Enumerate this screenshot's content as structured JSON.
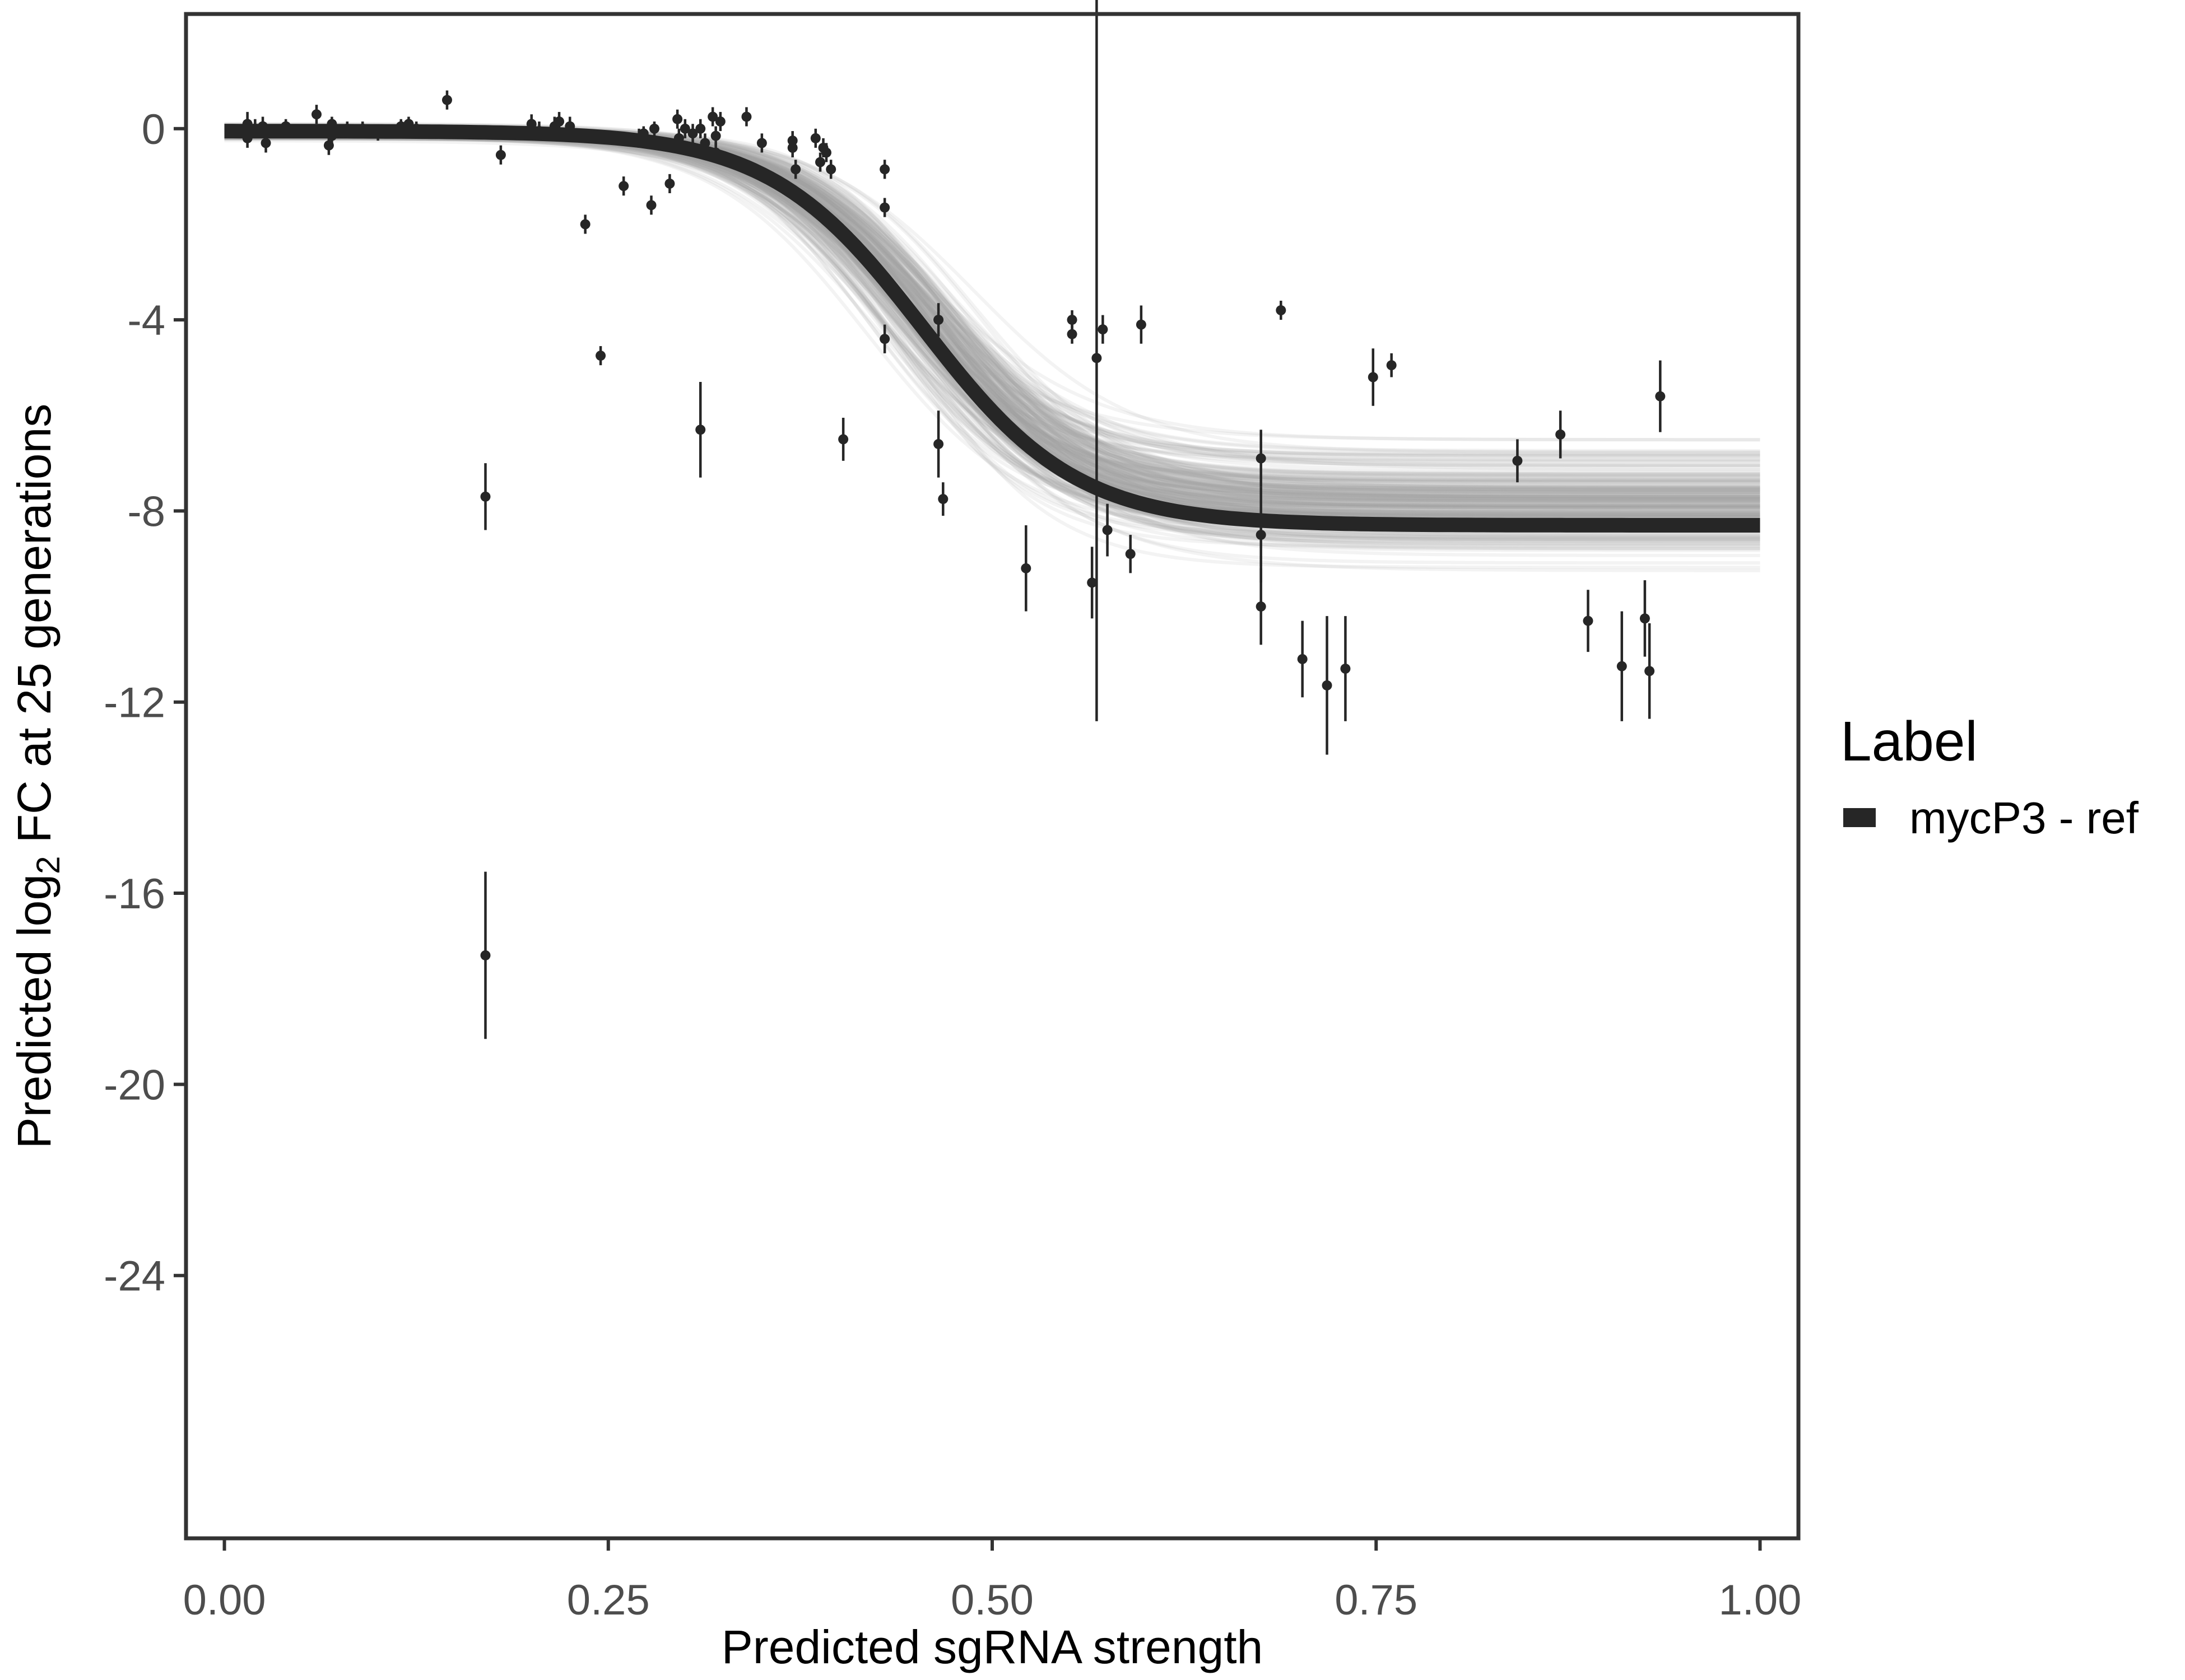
{
  "chart_data": {
    "type": "scatter",
    "xlabel": "Predicted sgRNA strength",
    "ylabel_parts": [
      "Predicted  log",
      "2",
      " FC at 25 generations"
    ],
    "xlim": [
      -0.025,
      1.025
    ],
    "ylim": [
      -29.5,
      2.4
    ],
    "x_ticks": [
      0.0,
      0.25,
      0.5,
      0.75,
      1.0
    ],
    "x_tick_labels": [
      "0.00",
      "0.25",
      "0.50",
      "0.75",
      "1.00"
    ],
    "y_ticks": [
      0,
      -4,
      -8,
      -12,
      -16,
      -20,
      -24
    ],
    "y_tick_labels": [
      "0",
      "-4",
      "-8",
      "-12",
      "-16",
      "-20",
      "-24"
    ],
    "grid": false,
    "legend": {
      "title": "Label",
      "position": "right",
      "entries": [
        {
          "label": "mycP3 - ref",
          "color": "#262626"
        }
      ]
    },
    "fit_curve": {
      "name": "mycP3 - ref",
      "color": "#262626",
      "model": "logistic",
      "top": -0.05,
      "bottom": -8.3,
      "midpoint": 0.455,
      "slope": 20
    },
    "posterior_band": {
      "color": "#a6a6a6",
      "top_range": [
        -0.35,
        0.2
      ],
      "bottom_range": [
        -10.4,
        -5.9
      ],
      "midpoint_range": [
        0.39,
        0.52
      ],
      "slope_range": [
        14,
        26
      ],
      "draws": 260
    },
    "points": [
      {
        "x": 0.015,
        "y": 0.1,
        "err": 0.25
      },
      {
        "x": 0.015,
        "y": -0.2,
        "err": 0.2
      },
      {
        "x": 0.02,
        "y": 0.0,
        "err": 0.2
      },
      {
        "x": 0.025,
        "y": 0.05,
        "err": 0.2
      },
      {
        "x": 0.027,
        "y": -0.3,
        "err": 0.2
      },
      {
        "x": 0.04,
        "y": 0.05,
        "err": 0.15
      },
      {
        "x": 0.06,
        "y": 0.3,
        "err": 0.2
      },
      {
        "x": 0.068,
        "y": -0.35,
        "err": 0.2
      },
      {
        "x": 0.07,
        "y": -0.15,
        "err": 0.2
      },
      {
        "x": 0.07,
        "y": 0.1,
        "err": 0.15
      },
      {
        "x": 0.08,
        "y": 0.0,
        "err": 0.15
      },
      {
        "x": 0.09,
        "y": 0.0,
        "err": 0.15
      },
      {
        "x": 0.1,
        "y": -0.1,
        "err": 0.15
      },
      {
        "x": 0.115,
        "y": 0.05,
        "err": 0.15
      },
      {
        "x": 0.12,
        "y": 0.1,
        "err": 0.15
      },
      {
        "x": 0.125,
        "y": 0.0,
        "err": 0.15
      },
      {
        "x": 0.145,
        "y": 0.6,
        "err": 0.2
      },
      {
        "x": 0.17,
        "y": -7.7,
        "err": 0.7
      },
      {
        "x": 0.17,
        "y": -17.3,
        "err": 1.75
      },
      {
        "x": 0.18,
        "y": -0.55,
        "err": 0.2
      },
      {
        "x": 0.2,
        "y": 0.1,
        "err": 0.2
      },
      {
        "x": 0.205,
        "y": -0.05,
        "err": 0.2
      },
      {
        "x": 0.215,
        "y": 0.05,
        "err": 0.2
      },
      {
        "x": 0.218,
        "y": 0.15,
        "err": 0.2
      },
      {
        "x": 0.225,
        "y": 0.05,
        "err": 0.2
      },
      {
        "x": 0.235,
        "y": -2.0,
        "err": 0.2
      },
      {
        "x": 0.245,
        "y": -4.75,
        "err": 0.2
      },
      {
        "x": 0.26,
        "y": -1.2,
        "err": 0.2
      },
      {
        "x": 0.27,
        "y": -0.2,
        "err": 0.2
      },
      {
        "x": 0.273,
        "y": -0.1,
        "err": 0.15
      },
      {
        "x": 0.278,
        "y": -1.6,
        "err": 0.2
      },
      {
        "x": 0.28,
        "y": 0.0,
        "err": 0.15
      },
      {
        "x": 0.29,
        "y": -1.15,
        "err": 0.2
      },
      {
        "x": 0.295,
        "y": 0.2,
        "err": 0.2
      },
      {
        "x": 0.296,
        "y": -0.2,
        "err": 0.2
      },
      {
        "x": 0.3,
        "y": 0.0,
        "err": 0.2
      },
      {
        "x": 0.305,
        "y": -0.1,
        "err": 0.2
      },
      {
        "x": 0.31,
        "y": 0.0,
        "err": 0.2
      },
      {
        "x": 0.31,
        "y": -6.3,
        "err": 1.0
      },
      {
        "x": 0.313,
        "y": -0.3,
        "err": 0.2
      },
      {
        "x": 0.318,
        "y": 0.25,
        "err": 0.2
      },
      {
        "x": 0.32,
        "y": -0.5,
        "err": 0.2
      },
      {
        "x": 0.32,
        "y": -0.15,
        "err": 0.2
      },
      {
        "x": 0.323,
        "y": 0.15,
        "err": 0.2
      },
      {
        "x": 0.34,
        "y": 0.25,
        "err": 0.2
      },
      {
        "x": 0.35,
        "y": -0.3,
        "err": 0.2
      },
      {
        "x": 0.37,
        "y": -0.25,
        "err": 0.2
      },
      {
        "x": 0.37,
        "y": -0.4,
        "err": 0.2
      },
      {
        "x": 0.372,
        "y": -0.85,
        "err": 0.2
      },
      {
        "x": 0.385,
        "y": -0.2,
        "err": 0.2
      },
      {
        "x": 0.388,
        "y": -0.7,
        "err": 0.2
      },
      {
        "x": 0.39,
        "y": -0.4,
        "err": 0.2
      },
      {
        "x": 0.392,
        "y": -0.5,
        "err": 0.2
      },
      {
        "x": 0.395,
        "y": -0.85,
        "err": 0.2
      },
      {
        "x": 0.403,
        "y": -6.5,
        "err": 0.45
      },
      {
        "x": 0.43,
        "y": -0.85,
        "err": 0.2
      },
      {
        "x": 0.43,
        "y": -1.65,
        "err": 0.2
      },
      {
        "x": 0.43,
        "y": -4.4,
        "err": 0.3
      },
      {
        "x": 0.465,
        "y": -4.0,
        "err": 0.35
      },
      {
        "x": 0.465,
        "y": -6.6,
        "err": 0.7
      },
      {
        "x": 0.468,
        "y": -7.75,
        "err": 0.35
      },
      {
        "x": 0.522,
        "y": -9.2,
        "err": 0.9
      },
      {
        "x": 0.552,
        "y": -4.0,
        "err": 0.2
      },
      {
        "x": 0.552,
        "y": -4.3,
        "err": 0.2
      },
      {
        "x": 0.565,
        "y": -9.5,
        "err": 0.75
      },
      {
        "x": 0.568,
        "y": -4.8,
        "err": 7.6
      },
      {
        "x": 0.572,
        "y": -4.2,
        "err": 0.3
      },
      {
        "x": 0.575,
        "y": -8.4,
        "err": 0.55
      },
      {
        "x": 0.59,
        "y": -8.9,
        "err": 0.4
      },
      {
        "x": 0.597,
        "y": -4.1,
        "err": 0.4
      },
      {
        "x": 0.675,
        "y": -6.9,
        "err": 0.6
      },
      {
        "x": 0.675,
        "y": -8.5,
        "err": 1.0
      },
      {
        "x": 0.675,
        "y": -10.0,
        "err": 0.8
      },
      {
        "x": 0.688,
        "y": -3.8,
        "err": 0.2
      },
      {
        "x": 0.702,
        "y": -11.1,
        "err": 0.8
      },
      {
        "x": 0.718,
        "y": -11.65,
        "err": 1.45
      },
      {
        "x": 0.73,
        "y": -11.3,
        "err": 1.1
      },
      {
        "x": 0.748,
        "y": -5.2,
        "err": 0.6
      },
      {
        "x": 0.76,
        "y": -4.95,
        "err": 0.25
      },
      {
        "x": 0.842,
        "y": -6.95,
        "err": 0.45
      },
      {
        "x": 0.87,
        "y": -6.4,
        "err": 0.5
      },
      {
        "x": 0.888,
        "y": -10.3,
        "err": 0.65
      },
      {
        "x": 0.91,
        "y": -11.25,
        "err": 1.15
      },
      {
        "x": 0.925,
        "y": -10.25,
        "err": 0.8
      },
      {
        "x": 0.928,
        "y": -11.35,
        "err": 1.0
      },
      {
        "x": 0.935,
        "y": -5.6,
        "err": 0.75
      }
    ]
  }
}
